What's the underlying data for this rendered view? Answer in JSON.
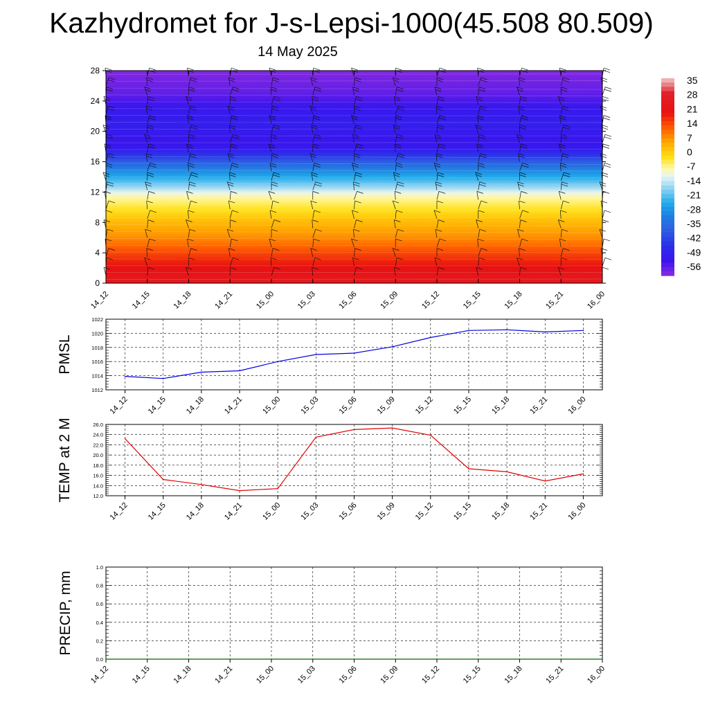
{
  "title": "Kazhydromet for J-s-Lepsi-1000(45.508 80.509)",
  "subtitle": "14 May 2025",
  "chart_data": [
    {
      "type": "heatmap",
      "name": "temperature-height-section",
      "x_ticks": [
        "14_12",
        "14_15",
        "14_18",
        "14_21",
        "15_00",
        "15_03",
        "15_06",
        "15_09",
        "15_12",
        "15_15",
        "15_18",
        "15_21",
        "16_00"
      ],
      "y_ticks": [
        "0",
        "4",
        "8",
        "12",
        "16",
        "20",
        "24",
        "28"
      ],
      "ylim": [
        0,
        28
      ],
      "layers": [
        {
          "y": 0,
          "value": 26
        },
        {
          "y": 2,
          "value": 21
        },
        {
          "y": 4,
          "value": 14
        },
        {
          "y": 6,
          "value": 7
        },
        {
          "y": 8,
          "value": 2
        },
        {
          "y": 10,
          "value": -5
        },
        {
          "y": 11.7,
          "value": -11
        },
        {
          "y": 12.2,
          "value": -16
        },
        {
          "y": 13,
          "value": -22
        },
        {
          "y": 14.5,
          "value": -31
        },
        {
          "y": 16,
          "value": -42
        },
        {
          "y": 17.5,
          "value": -55
        },
        {
          "y": 18.5,
          "value": -58
        },
        {
          "y": 21,
          "value": -55
        },
        {
          "y": 23,
          "value": -57
        },
        {
          "y": 25,
          "value": -62
        },
        {
          "y": 28,
          "value": -65
        }
      ],
      "colorbar": {
        "labels": [
          "35",
          "28",
          "21",
          "14",
          "7",
          "0",
          "-7",
          "-14",
          "-21",
          "-28",
          "-35",
          "-42",
          "-49",
          "-56"
        ],
        "stops": [
          {
            "v": 38,
            "c": "#f2c8c8"
          },
          {
            "v": 30,
            "c": "#e0202a"
          },
          {
            "v": 20,
            "c": "#e81010"
          },
          {
            "v": 12,
            "c": "#ff5a00"
          },
          {
            "v": 4,
            "c": "#ffaa00"
          },
          {
            "v": -4,
            "c": "#ffe21a"
          },
          {
            "v": -10,
            "c": "#fff9b0"
          },
          {
            "v": -14,
            "c": "#e4f4fb"
          },
          {
            "v": -20,
            "c": "#90d4f3"
          },
          {
            "v": -28,
            "c": "#20aaea"
          },
          {
            "v": -35,
            "c": "#1e7ee2"
          },
          {
            "v": -42,
            "c": "#2f5ee2"
          },
          {
            "v": -50,
            "c": "#2a30ea"
          },
          {
            "v": -58,
            "c": "#3a14ee"
          },
          {
            "v": -66,
            "c": "#8a2ae0"
          }
        ]
      },
      "wind_barbs": true
    },
    {
      "type": "line",
      "ylabel": "PMSL",
      "ylim": [
        1012,
        1022
      ],
      "y_ticks": [
        "1012",
        "1014",
        "1016",
        "1018",
        "1020",
        "1022"
      ],
      "categories": [
        "14_12",
        "14_15",
        "14_18",
        "14_21",
        "15_00",
        "15_03",
        "15_06",
        "15_09",
        "15_12",
        "15_15",
        "15_18",
        "15_21",
        "16_00"
      ],
      "values": [
        1013.9,
        1013.6,
        1014.5,
        1014.7,
        1016.0,
        1017.0,
        1017.2,
        1018.1,
        1019.4,
        1020.4,
        1020.5,
        1020.2,
        1020.4
      ],
      "color": "#0000e0",
      "grid": true
    },
    {
      "type": "line",
      "ylabel": "TEMP at 2 M",
      "ylim": [
        12,
        26
      ],
      "y_ticks": [
        "12.0",
        "14.0",
        "16.0",
        "18.0",
        "20.0",
        "22.0",
        "24.0",
        "26.0"
      ],
      "categories": [
        "14_12",
        "14_15",
        "14_18",
        "14_21",
        "15_00",
        "15_03",
        "15_06",
        "15_09",
        "15_12",
        "15_15",
        "15_18",
        "15_21",
        "16_00"
      ],
      "values": [
        23.2,
        15.2,
        14.2,
        13.0,
        13.4,
        23.5,
        25.0,
        25.3,
        23.9,
        17.3,
        16.7,
        14.9,
        16.3
      ],
      "color": "#e00000",
      "grid": true
    },
    {
      "type": "line",
      "ylabel": "PRECIP, mm",
      "ylim": [
        0,
        1
      ],
      "y_ticks": [
        "0.0",
        "0.2",
        "0.4",
        "0.6",
        "0.8",
        "1.0"
      ],
      "categories": [
        "14_12",
        "14_15",
        "14_18",
        "14_21",
        "15_00",
        "15_03",
        "15_06",
        "15_09",
        "15_12",
        "15_15",
        "15_18",
        "15_21",
        "16_00"
      ],
      "values": [
        0,
        0,
        0,
        0,
        0,
        0,
        0,
        0,
        0,
        0,
        0,
        0,
        0
      ],
      "color": "#006400",
      "grid": true
    }
  ]
}
